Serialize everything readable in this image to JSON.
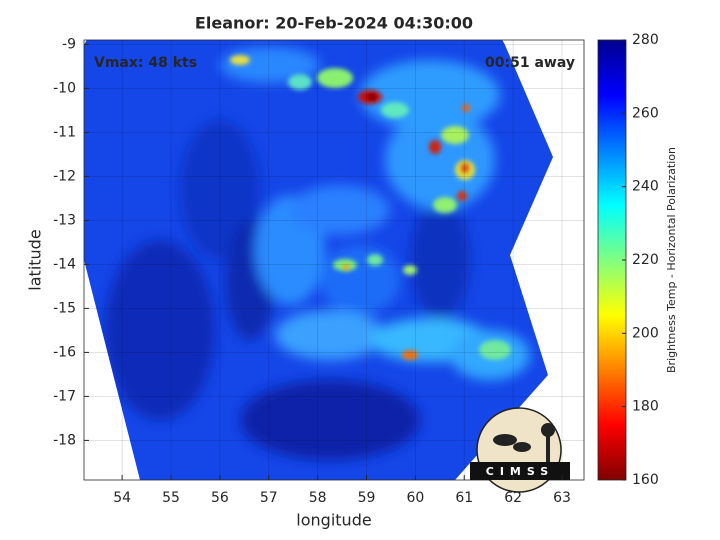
{
  "chart_data": {
    "type": "swath-map",
    "title": "Eleanor: 20-Feb-2024 04:30:00",
    "annotations": [
      "Vmax: 48 kts",
      "00:51 away"
    ],
    "xlabel": "longitude",
    "ylabel": "latitude",
    "xlim": [
      53.22,
      63.45
    ],
    "xticks": [
      54,
      55,
      56,
      57,
      58,
      59,
      60,
      61,
      62,
      63
    ],
    "ylim": [
      -18.9,
      -8.9
    ],
    "yticks": [
      -18,
      -17,
      -16,
      -15,
      -14,
      -13,
      -12,
      -11,
      -10,
      -9
    ],
    "grid": true,
    "colorbar": {
      "label": "Brightness Temp - Horizontal Polarization",
      "colormap": "jet",
      "lim": [
        160,
        280
      ],
      "ticks": [
        160,
        180,
        200,
        220,
        240,
        260,
        280
      ]
    },
    "logo": "CIMSS"
  }
}
